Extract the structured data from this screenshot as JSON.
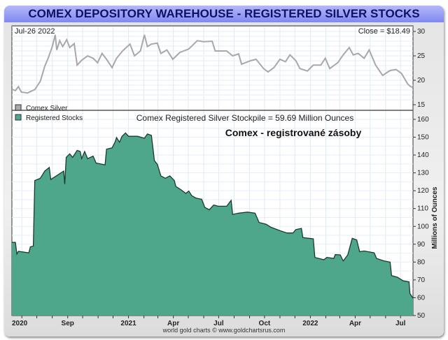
{
  "title": "COMEX DEPOSITORY WAREHOUSE - REGISTERED SILVER STOCKS",
  "footer": "world gold charts © www.goldchartsrus.com",
  "chart_data": [
    {
      "type": "line",
      "date_label": "Jul-26  2022",
      "close_label": "Close = $18.49",
      "legend": "Comex Silver",
      "color": "#a8a8a8",
      "xlim": [
        "2020-05-12",
        "2022-07-26"
      ],
      "ylim": [
        13,
        32
      ],
      "yticks": [
        15,
        20,
        25,
        30
      ],
      "grid": true,
      "series": [
        {
          "name": "Comex Silver",
          "x": [
            "2020-05-13",
            "2020-05-19",
            "2020-05-25",
            "2020-05-31",
            "2020-06-12",
            "2020-06-27",
            "2020-07-08",
            "2020-07-17",
            "2020-07-23",
            "2020-08-01",
            "2020-08-07",
            "2020-08-10",
            "2020-08-16",
            "2020-08-22",
            "2020-08-30",
            "2020-09-05",
            "2020-09-14",
            "2020-09-20",
            "2020-09-29",
            "2020-10-11",
            "2020-10-22",
            "2020-10-31",
            "2020-11-09",
            "2020-11-18",
            "2020-11-29",
            "2020-12-08",
            "2020-12-20",
            "2021-01-04",
            "2021-01-13",
            "2021-01-25",
            "2021-02-02",
            "2021-02-08",
            "2021-02-16",
            "2021-02-28",
            "2021-03-07",
            "2021-03-19",
            "2021-03-31",
            "2021-04-14",
            "2021-05-02",
            "2021-05-19",
            "2021-06-01",
            "2021-06-18",
            "2021-06-24",
            "2021-07-17",
            "2021-07-29",
            "2021-08-10",
            "2021-08-16",
            "2021-09-03",
            "2021-09-14",
            "2021-09-29",
            "2021-10-08",
            "2021-10-20",
            "2021-11-01",
            "2021-11-12",
            "2021-11-21",
            "2021-12-03",
            "2021-12-11",
            "2021-12-26",
            "2022-01-07",
            "2022-01-22",
            "2022-01-31",
            "2022-02-09",
            "2022-02-25",
            "2022-03-08",
            "2022-03-20",
            "2022-03-28",
            "2022-04-07",
            "2022-04-19",
            "2022-04-29",
            "2022-05-12",
            "2022-05-26",
            "2022-06-10",
            "2022-06-22",
            "2022-07-03",
            "2022-07-15",
            "2022-07-20",
            "2022-07-26"
          ],
          "y": [
            18.1,
            17.9,
            18.7,
            17.6,
            17.4,
            18.1,
            19.8,
            22.9,
            24.3,
            26.9,
            29.3,
            26.2,
            28.1,
            26.9,
            28.3,
            26.7,
            27.5,
            23.1,
            24.1,
            25.0,
            24.5,
            23.6,
            25.5,
            24.3,
            22.6,
            24.5,
            26.0,
            27.4,
            25.0,
            26.0,
            29.3,
            26.9,
            27.4,
            27.6,
            25.5,
            26.2,
            24.3,
            25.7,
            26.4,
            28.1,
            27.9,
            28.0,
            26.0,
            26.0,
            25.0,
            25.4,
            23.3,
            24.0,
            24.3,
            22.4,
            21.7,
            22.6,
            24.3,
            23.8,
            25.2,
            24.0,
            22.4,
            21.9,
            23.1,
            23.1,
            24.5,
            22.4,
            23.6,
            25.2,
            26.7,
            25.2,
            25.5,
            24.5,
            26.2,
            23.1,
            21.0,
            22.0,
            22.2,
            21.4,
            19.3,
            18.8,
            18.5
          ]
        }
      ]
    },
    {
      "type": "area",
      "title": "Comex Registered Silver Stockpile = 59.69 Million Ounces",
      "annotation": "Comex - registrované zásoby",
      "legend": "Registered Stocks",
      "ylabel": "Millions of Ounces",
      "color": "#4ea78a",
      "line_color": "#1c3a2c",
      "xlim": [
        "2020-05-12",
        "2022-07-26"
      ],
      "ylim": [
        50,
        163
      ],
      "yticks": [
        50,
        60,
        70,
        80,
        90,
        100,
        110,
        120,
        130,
        140,
        150,
        160
      ],
      "xticks": [
        {
          "date": "2020-05-14",
          "label": "2020"
        },
        {
          "date": "2020-09-01",
          "label": "Sep"
        },
        {
          "date": "2021-01-01",
          "label": "2021"
        },
        {
          "date": "2021-04-01",
          "label": "Apr"
        },
        {
          "date": "2021-07-01",
          "label": "Jul"
        },
        {
          "date": "2021-10-01",
          "label": "Oct"
        },
        {
          "date": "2022-01-01",
          "label": "2022"
        },
        {
          "date": "2022-04-01",
          "label": "Apr"
        },
        {
          "date": "2022-07-01",
          "label": "Jul"
        }
      ],
      "grid": true,
      "series": [
        {
          "name": "Registered Stocks",
          "x": [
            "2020-05-12",
            "2020-05-19",
            "2020-05-22",
            "2020-05-25",
            "2020-06-15",
            "2020-06-18",
            "2020-06-24",
            "2020-06-27",
            "2020-07-08",
            "2020-07-17",
            "2020-07-26",
            "2020-07-29",
            "2020-08-13",
            "2020-08-24",
            "2020-08-26",
            "2020-08-29",
            "2020-09-05",
            "2020-09-11",
            "2020-09-20",
            "2020-09-26",
            "2020-09-29",
            "2020-10-05",
            "2020-10-11",
            "2020-10-22",
            "2020-10-28",
            "2020-11-15",
            "2020-11-18",
            "2020-11-29",
            "2020-12-05",
            "2020-12-08",
            "2020-12-14",
            "2020-12-19",
            "2020-12-26",
            "2021-01-01",
            "2021-01-19",
            "2021-02-02",
            "2021-02-08",
            "2021-02-16",
            "2021-02-22",
            "2021-02-28",
            "2021-03-07",
            "2021-03-16",
            "2021-03-25",
            "2021-04-03",
            "2021-04-06",
            "2021-04-17",
            "2021-04-26",
            "2021-05-02",
            "2021-05-08",
            "2021-05-16",
            "2021-05-28",
            "2021-06-03",
            "2021-06-12",
            "2021-06-21",
            "2021-06-30",
            "2021-07-17",
            "2021-07-26",
            "2021-07-29",
            "2021-08-10",
            "2021-08-28",
            "2021-09-12",
            "2021-09-20",
            "2021-10-05",
            "2021-10-14",
            "2021-11-01",
            "2021-11-15",
            "2021-11-27",
            "2021-12-03",
            "2021-12-14",
            "2021-12-17",
            "2022-01-07",
            "2022-01-10",
            "2022-01-28",
            "2022-02-03",
            "2022-02-17",
            "2022-02-20",
            "2022-03-02",
            "2022-03-08",
            "2022-03-17",
            "2022-03-26",
            "2022-04-04",
            "2022-04-10",
            "2022-04-19",
            "2022-05-09",
            "2022-05-14",
            "2022-05-29",
            "2022-06-10",
            "2022-06-13",
            "2022-06-25",
            "2022-07-06",
            "2022-07-18",
            "2022-07-20",
            "2022-07-23",
            "2022-07-26"
          ],
          "y": [
            91,
            91,
            84.5,
            86,
            85.2,
            88.5,
            89,
            125.7,
            127,
            131,
            133,
            126.3,
            129,
            131,
            123.7,
            138.7,
            140.7,
            138.7,
            142.6,
            142,
            138,
            142,
            138,
            139.4,
            135.5,
            134.5,
            143.3,
            144,
            147.2,
            149.8,
            147.2,
            150.5,
            152.4,
            150.5,
            150.5,
            149.4,
            151.8,
            151,
            136.8,
            134.8,
            128.3,
            127,
            128.3,
            125.7,
            122.4,
            120.4,
            118.5,
            119.8,
            117.2,
            115.9,
            115.2,
            110.7,
            109.3,
            112,
            111.3,
            111.3,
            114.6,
            106.7,
            107.4,
            108,
            107.4,
            102.2,
            101.1,
            99.5,
            97.6,
            96.3,
            96.3,
            98.2,
            98.9,
            93.7,
            93,
            82.6,
            81.3,
            82.6,
            82,
            84.2,
            84,
            80.6,
            84,
            93.3,
            92.4,
            85.8,
            86.2,
            85.2,
            82,
            80.6,
            80,
            72.4,
            71.5,
            69.5,
            68.9,
            62.3,
            61,
            59.69
          ]
        }
      ]
    }
  ]
}
